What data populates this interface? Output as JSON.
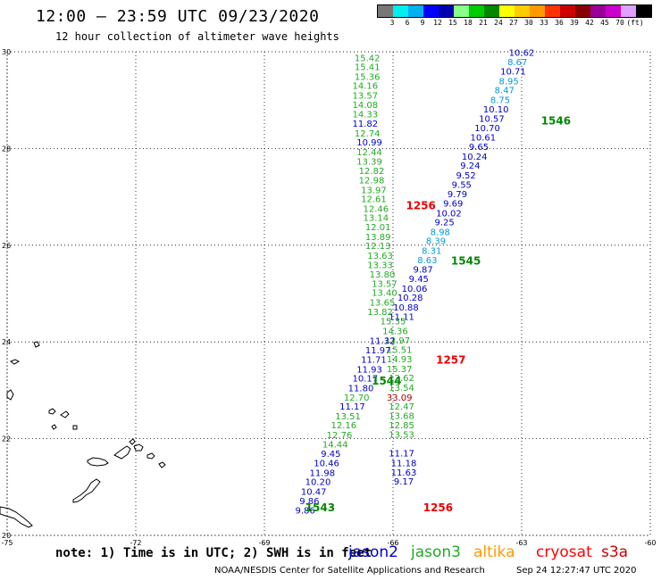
{
  "header": {
    "title": "12:00 – 23:59 UTC 09/23/2020",
    "subtitle": "12 hour collection of altimeter wave heights"
  },
  "legend": {
    "colors": [
      "#777777",
      "#00eeee",
      "#00b0f0",
      "#0000ff",
      "#0000b0",
      "#88ff88",
      "#00cc00",
      "#008800",
      "#ffff00",
      "#ffcc00",
      "#ff9900",
      "#ff3300",
      "#cc0000",
      "#880000",
      "#990099",
      "#cc00cc",
      "#e0a0ff",
      "#000000"
    ],
    "labels": [
      "3",
      "6",
      "9",
      "12",
      "15",
      "18",
      "21",
      "24",
      "27",
      "30",
      "33",
      "36",
      "39",
      "42",
      "45",
      "70",
      "(ft)"
    ]
  },
  "axes": {
    "x_ticks": [
      "-75",
      "-72",
      "-69",
      "-66",
      "-63",
      "-60"
    ],
    "y_ticks": [
      "30",
      "28",
      "26",
      "24",
      "22",
      "20"
    ]
  },
  "map_data": {
    "lon_range": [
      -75,
      -60
    ],
    "lat_range": [
      20,
      30
    ],
    "satellite_colors": {
      "jason2": "#0000cc",
      "jason3": "#22aa22",
      "altika": "#ff9900",
      "cryosat": "#ff0000",
      "s3a": "#cc0000"
    },
    "readings": [
      {
        "text": "15.42",
        "lon": -66.6,
        "lat": 29.81,
        "sat": "jason3"
      },
      {
        "text": "15.41",
        "lon": -66.6,
        "lat": 29.62,
        "sat": "jason3"
      },
      {
        "text": "15.36",
        "lon": -66.6,
        "lat": 29.42,
        "sat": "jason3"
      },
      {
        "text": "14.16",
        "lon": -66.65,
        "lat": 29.23,
        "sat": "jason3"
      },
      {
        "text": "13.57",
        "lon": -66.65,
        "lat": 29.03,
        "sat": "jason3"
      },
      {
        "text": "14.08",
        "lon": -66.65,
        "lat": 28.84,
        "sat": "jason3"
      },
      {
        "text": "14.33",
        "lon": -66.65,
        "lat": 28.64,
        "sat": "jason3"
      },
      {
        "text": "11.82",
        "lon": -66.65,
        "lat": 28.45,
        "sat": "jason2"
      },
      {
        "text": "12.74",
        "lon": -66.6,
        "lat": 28.25,
        "sat": "jason3"
      },
      {
        "text": "10.99",
        "lon": -66.55,
        "lat": 28.06,
        "sat": "jason2"
      },
      {
        "text": "12.44",
        "lon": -66.55,
        "lat": 27.86,
        "sat": "jason3"
      },
      {
        "text": "13.39",
        "lon": -66.55,
        "lat": 27.67,
        "sat": "jason3"
      },
      {
        "text": "12.82",
        "lon": -66.5,
        "lat": 27.47,
        "sat": "jason3"
      },
      {
        "text": "12.98",
        "lon": -66.5,
        "lat": 27.28,
        "sat": "jason3"
      },
      {
        "text": "13.97",
        "lon": -66.45,
        "lat": 27.08,
        "sat": "jason3"
      },
      {
        "text": "12.61",
        "lon": -66.45,
        "lat": 26.89,
        "sat": "jason3"
      },
      {
        "text": "12.46",
        "lon": -66.4,
        "lat": 26.69,
        "sat": "jason3"
      },
      {
        "text": "13.14",
        "lon": -66.4,
        "lat": 26.5,
        "sat": "jason3"
      },
      {
        "text": "12.01",
        "lon": -66.35,
        "lat": 26.31,
        "sat": "jason3"
      },
      {
        "text": "13.89",
        "lon": -66.35,
        "lat": 26.11,
        "sat": "jason3"
      },
      {
        "text": "12.13",
        "lon": -66.35,
        "lat": 25.92,
        "sat": "jason3"
      },
      {
        "text": "13.63",
        "lon": -66.3,
        "lat": 25.72,
        "sat": "jason3"
      },
      {
        "text": "13.33",
        "lon": -66.3,
        "lat": 25.53,
        "sat": "jason3"
      },
      {
        "text": "13.80",
        "lon": -66.25,
        "lat": 25.33,
        "sat": "jason3"
      },
      {
        "text": "13.57",
        "lon": -66.2,
        "lat": 25.14,
        "sat": "jason3"
      },
      {
        "text": "13.40",
        "lon": -66.2,
        "lat": 24.95,
        "sat": "jason3"
      },
      {
        "text": "13.65",
        "lon": -66.25,
        "lat": 24.75,
        "sat": "jason3"
      },
      {
        "text": "13.82",
        "lon": -66.3,
        "lat": 24.56,
        "sat": "jason3"
      },
      {
        "text": "15.35",
        "lon": -66.0,
        "lat": 24.36,
        "sat": "jason3"
      },
      {
        "text": "14.36",
        "lon": -65.95,
        "lat": 24.16,
        "sat": "jason3"
      },
      {
        "text": "13.97",
        "lon": -65.9,
        "lat": 23.97,
        "sat": "jason3"
      },
      {
        "text": "15.51",
        "lon": -65.85,
        "lat": 23.77,
        "sat": "jason3"
      },
      {
        "text": "14.93",
        "lon": -65.85,
        "lat": 23.58,
        "sat": "jason3"
      },
      {
        "text": "15.37",
        "lon": -65.85,
        "lat": 23.38,
        "sat": "jason3"
      },
      {
        "text": "13.62",
        "lon": -65.8,
        "lat": 23.19,
        "sat": "jason3"
      },
      {
        "text": "13.54",
        "lon": -65.8,
        "lat": 22.99,
        "sat": "jason3"
      },
      {
        "text": "12.47",
        "lon": -65.8,
        "lat": 22.6,
        "sat": "jason3"
      },
      {
        "text": "13.68",
        "lon": -65.8,
        "lat": 22.41,
        "sat": "jason3"
      },
      {
        "text": "12.85",
        "lon": -65.8,
        "lat": 22.21,
        "sat": "jason3"
      },
      {
        "text": "13.53",
        "lon": -65.8,
        "lat": 22.02,
        "sat": "jason3"
      },
      {
        "text": "11.17",
        "lon": -65.8,
        "lat": 21.63,
        "sat": "jason2"
      },
      {
        "text": "11.18",
        "lon": -65.75,
        "lat": 21.43,
        "sat": "jason2"
      },
      {
        "text": "11.63",
        "lon": -65.75,
        "lat": 21.24,
        "sat": "jason2"
      },
      {
        "text": "9.17",
        "lon": -65.75,
        "lat": 21.05,
        "sat": "jason2"
      },
      {
        "text": "10.62",
        "lon": -63.0,
        "lat": 29.92,
        "sat": "jason2"
      },
      {
        "text": "8.67",
        "lon": -63.1,
        "lat": 29.72,
        "sat": "altika_cyan"
      },
      {
        "text": "10.71",
        "lon": -63.2,
        "lat": 29.53,
        "sat": "jason2"
      },
      {
        "text": "8.95",
        "lon": -63.3,
        "lat": 29.33,
        "sat": "altika_cyan"
      },
      {
        "text": "8.47",
        "lon": -63.4,
        "lat": 29.14,
        "sat": "altika_cyan"
      },
      {
        "text": "8.75",
        "lon": -63.5,
        "lat": 28.94,
        "sat": "altika_cyan"
      },
      {
        "text": "10.10",
        "lon": -63.6,
        "lat": 28.75,
        "sat": "jason2"
      },
      {
        "text": "10.57",
        "lon": -63.7,
        "lat": 28.55,
        "sat": "jason2"
      },
      {
        "text": "10.70",
        "lon": -63.8,
        "lat": 28.36,
        "sat": "jason2"
      },
      {
        "text": "10.61",
        "lon": -63.9,
        "lat": 28.16,
        "sat": "jason2"
      },
      {
        "text": "9.65",
        "lon": -64.0,
        "lat": 27.97,
        "sat": "jason2"
      },
      {
        "text": "10.24",
        "lon": -64.1,
        "lat": 27.77,
        "sat": "jason2"
      },
      {
        "text": "9.24",
        "lon": -64.2,
        "lat": 27.58,
        "sat": "jason2"
      },
      {
        "text": "9.52",
        "lon": -64.3,
        "lat": 27.38,
        "sat": "jason2"
      },
      {
        "text": "9.55",
        "lon": -64.4,
        "lat": 27.19,
        "sat": "jason2"
      },
      {
        "text": "9.79",
        "lon": -64.5,
        "lat": 26.99,
        "sat": "jason2"
      },
      {
        "text": "9.69",
        "lon": -64.6,
        "lat": 26.8,
        "sat": "jason2"
      },
      {
        "text": "10.02",
        "lon": -64.7,
        "lat": 26.6,
        "sat": "jason2"
      },
      {
        "text": "9.25",
        "lon": -64.8,
        "lat": 26.41,
        "sat": "jason2"
      },
      {
        "text": "8.98",
        "lon": -64.9,
        "lat": 26.21,
        "sat": "altika_cyan"
      },
      {
        "text": "8.39",
        "lon": -65.0,
        "lat": 26.02,
        "sat": "altika_cyan"
      },
      {
        "text": "8.31",
        "lon": -65.1,
        "lat": 25.82,
        "sat": "altika_cyan"
      },
      {
        "text": "8.63",
        "lon": -65.2,
        "lat": 25.63,
        "sat": "altika_cyan"
      },
      {
        "text": "9.87",
        "lon": -65.3,
        "lat": 25.43,
        "sat": "jason2"
      },
      {
        "text": "9.45",
        "lon": -65.4,
        "lat": 25.24,
        "sat": "jason2"
      },
      {
        "text": "10.06",
        "lon": -65.5,
        "lat": 25.04,
        "sat": "jason2"
      },
      {
        "text": "10.28",
        "lon": -65.6,
        "lat": 24.85,
        "sat": "jason2"
      },
      {
        "text": "10.88",
        "lon": -65.7,
        "lat": 24.65,
        "sat": "jason2"
      },
      {
        "text": "11.11",
        "lon": -65.8,
        "lat": 24.46,
        "sat": "jason2"
      },
      {
        "text": "11.32",
        "lon": -66.25,
        "lat": 23.96,
        "sat": "jason2"
      },
      {
        "text": "11.97",
        "lon": -66.35,
        "lat": 23.76,
        "sat": "jason2"
      },
      {
        "text": "11.71",
        "lon": -66.45,
        "lat": 23.57,
        "sat": "jason2"
      },
      {
        "text": "11.93",
        "lon": -66.55,
        "lat": 23.37,
        "sat": "jason2"
      },
      {
        "text": "10.17",
        "lon": -66.65,
        "lat": 23.18,
        "sat": "jason2"
      },
      {
        "text": "11.80",
        "lon": -66.75,
        "lat": 22.98,
        "sat": "jason2"
      },
      {
        "text": "12.70",
        "lon": -66.85,
        "lat": 22.79,
        "sat": "jason3"
      },
      {
        "text": "11.17",
        "lon": -66.95,
        "lat": 22.6,
        "sat": "jason2"
      },
      {
        "text": "13.51",
        "lon": -67.05,
        "lat": 22.4,
        "sat": "jason3"
      },
      {
        "text": "12.16",
        "lon": -67.15,
        "lat": 22.21,
        "sat": "jason3"
      },
      {
        "text": "12.76",
        "lon": -67.25,
        "lat": 22.01,
        "sat": "jason3"
      },
      {
        "text": "14.44",
        "lon": -67.35,
        "lat": 21.82,
        "sat": "jason3"
      },
      {
        "text": "9.45",
        "lon": -67.45,
        "lat": 21.62,
        "sat": "jason2"
      },
      {
        "text": "10.46",
        "lon": -67.55,
        "lat": 21.43,
        "sat": "jason2"
      },
      {
        "text": "11.98",
        "lon": -67.65,
        "lat": 21.23,
        "sat": "jason2"
      },
      {
        "text": "10.20",
        "lon": -67.75,
        "lat": 21.04,
        "sat": "jason2"
      },
      {
        "text": "10.47",
        "lon": -67.85,
        "lat": 20.84,
        "sat": "jason2"
      },
      {
        "text": "9.86",
        "lon": -67.95,
        "lat": 20.65,
        "sat": "jason2"
      },
      {
        "text": "9.86",
        "lon": -68.05,
        "lat": 20.45,
        "sat": "jason2"
      },
      {
        "text": "33.09",
        "lon": -65.85,
        "lat": 22.79,
        "sat": "s3a_dark"
      }
    ],
    "pass_times": [
      {
        "text": "1546",
        "lon": -62.2,
        "lat": 28.5,
        "color": "#008800"
      },
      {
        "text": "1256",
        "lon": -65.35,
        "lat": 26.74,
        "color": "#ee0000"
      },
      {
        "text": "1545",
        "lon": -64.3,
        "lat": 25.6,
        "color": "#008800"
      },
      {
        "text": "1257",
        "lon": -64.65,
        "lat": 23.55,
        "color": "#ee0000"
      },
      {
        "text": "1544",
        "lon": -66.15,
        "lat": 23.12,
        "color": "#008800"
      },
      {
        "text": "1543",
        "lon": -67.7,
        "lat": 20.5,
        "color": "#008800"
      },
      {
        "text": "1256",
        "lon": -64.95,
        "lat": 20.5,
        "color": "#ee0000"
      }
    ],
    "extra_colors": {
      "altika_cyan": "#0099dd",
      "s3a_dark": "#aa0000"
    }
  },
  "footer": {
    "note": "note: 1) Time is in UTC; 2) SWH is in feet",
    "sat_jason2": "jason2",
    "sat_jason3": "jason3",
    "sat_altika": "altika",
    "sat_cryosat": "cryosat",
    "sat_s3a": "s3a",
    "credit": "NOAA/NESDIS Center for Satellite Applications and Research",
    "timestamp": "Sep 24 12:27:47 UTC 2020"
  }
}
